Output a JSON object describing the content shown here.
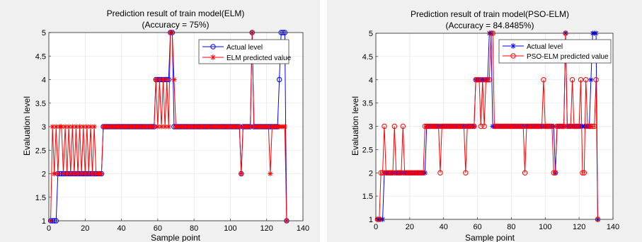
{
  "colors": {
    "panel_bg": "#f0f0f0",
    "axes_bg": "#ffffff",
    "axis": "#262626",
    "grid": "#dfdfdf",
    "blue": "#0000ff",
    "red": "#ff0000"
  },
  "chart_data": [
    {
      "type": "line",
      "title": "Prediction result of train model(ELM)",
      "subtitle": "(Accuracy = 75%)",
      "xlabel": "Sample point",
      "ylabel": "Evaluation level",
      "xlim": [
        0,
        140
      ],
      "ylim": [
        1,
        5
      ],
      "xticks": [
        0,
        20,
        40,
        60,
        80,
        100,
        120,
        140
      ],
      "yticks": [
        1,
        1.5,
        2,
        2.5,
        3,
        3.5,
        4,
        4.5,
        5
      ],
      "grid": true,
      "legend": "top-right",
      "series": [
        {
          "name": "Actual level",
          "color": "#0000ff",
          "marker": "circle",
          "values": [
            1,
            1,
            1,
            1,
            2,
            2,
            2,
            2,
            2,
            2,
            2,
            2,
            2,
            2,
            2,
            2,
            2,
            2,
            2,
            2,
            2,
            2,
            2,
            2,
            2,
            2,
            2,
            2,
            2,
            3,
            3,
            3,
            3,
            3,
            3,
            3,
            3,
            3,
            3,
            3,
            3,
            3,
            3,
            3,
            3,
            3,
            3,
            3,
            3,
            3,
            3,
            3,
            3,
            3,
            3,
            3,
            3,
            3,
            4,
            4,
            4,
            4,
            4,
            4,
            4,
            4,
            5,
            5,
            3,
            3,
            3,
            3,
            3,
            3,
            3,
            3,
            3,
            3,
            3,
            3,
            3,
            3,
            3,
            3,
            3,
            3,
            3,
            3,
            3,
            3,
            3,
            3,
            3,
            3,
            3,
            3,
            3,
            3,
            3,
            3,
            3,
            3,
            3,
            3,
            3,
            2,
            3,
            3,
            3,
            3,
            3,
            5,
            3,
            3,
            3,
            3,
            3,
            3,
            3,
            3,
            3,
            3,
            3,
            3,
            3,
            3,
            4,
            5,
            5,
            5,
            1
          ]
        },
        {
          "name": "ELM predicted value",
          "color": "#ff0000",
          "marker": "star",
          "values": [
            1,
            3,
            2,
            3,
            2,
            3,
            3,
            2,
            3,
            2,
            3,
            2,
            3,
            2,
            3,
            2,
            3,
            2,
            3,
            2,
            3,
            2,
            3,
            2,
            3,
            2,
            2,
            2,
            2,
            3,
            3,
            3,
            3,
            3,
            3,
            3,
            3,
            3,
            3,
            3,
            3,
            3,
            3,
            3,
            3,
            3,
            3,
            3,
            3,
            3,
            3,
            3,
            3,
            3,
            3,
            3,
            3,
            3,
            4,
            3,
            4,
            3,
            4,
            3,
            4,
            3,
            5,
            5,
            4,
            3,
            3,
            3,
            3,
            3,
            3,
            3,
            3,
            3,
            3,
            3,
            3,
            3,
            3,
            3,
            3,
            3,
            3,
            3,
            3,
            3,
            3,
            3,
            3,
            3,
            3,
            3,
            3,
            3,
            3,
            3,
            3,
            3,
            3,
            3,
            3,
            2,
            3,
            3,
            3,
            3,
            3,
            5,
            3,
            3,
            3,
            3,
            3,
            3,
            3,
            3,
            3,
            2,
            3,
            3,
            3,
            3,
            3,
            3,
            3,
            3,
            1
          ]
        }
      ]
    },
    {
      "type": "line",
      "title": "Prediction result of train model(PSO-ELM)",
      "subtitle": "(Accuracy = 84.8485%)",
      "xlabel": "Sample point",
      "ylabel": "Evaluation level",
      "xlim": [
        0,
        140
      ],
      "ylim": [
        1,
        5
      ],
      "xticks": [
        0,
        20,
        40,
        60,
        80,
        100,
        120,
        140
      ],
      "yticks": [
        1,
        1.5,
        2,
        2.5,
        3,
        3.5,
        4,
        4.5,
        5
      ],
      "grid": true,
      "legend": "top-right",
      "series": [
        {
          "name": "Actual level",
          "color": "#0000ff",
          "marker": "star",
          "values": [
            1,
            1,
            1,
            1,
            2,
            2,
            2,
            2,
            2,
            2,
            2,
            2,
            2,
            2,
            2,
            2,
            2,
            2,
            2,
            2,
            2,
            2,
            2,
            2,
            2,
            2,
            2,
            2,
            2,
            3,
            3,
            3,
            3,
            3,
            3,
            3,
            3,
            3,
            3,
            3,
            3,
            3,
            3,
            3,
            3,
            3,
            3,
            3,
            3,
            3,
            3,
            3,
            3,
            3,
            3,
            3,
            3,
            3,
            4,
            4,
            4,
            4,
            4,
            4,
            4,
            4,
            5,
            5,
            3,
            3,
            3,
            3,
            3,
            3,
            3,
            3,
            3,
            3,
            3,
            3,
            3,
            3,
            3,
            3,
            3,
            3,
            3,
            3,
            3,
            3,
            3,
            3,
            3,
            3,
            3,
            3,
            3,
            3,
            3,
            3,
            3,
            3,
            3,
            3,
            3,
            2,
            3,
            3,
            3,
            3,
            3,
            5,
            3,
            3,
            3,
            3,
            3,
            3,
            3,
            3,
            3,
            3,
            3,
            3,
            3,
            3,
            4,
            5,
            5,
            5,
            1
          ]
        },
        {
          "name": "PSO-ELM predicted value",
          "color": "#ff0000",
          "marker": "circle",
          "values": [
            1,
            1,
            2,
            2,
            3,
            2,
            2,
            2,
            2,
            2,
            3,
            2,
            2,
            2,
            2,
            3,
            2,
            2,
            2,
            2,
            2,
            2,
            2,
            2,
            2,
            2,
            2,
            2,
            3,
            3,
            3,
            3,
            3,
            3,
            3,
            3,
            3,
            2,
            3,
            3,
            3,
            3,
            3,
            3,
            3,
            3,
            3,
            3,
            3,
            3,
            3,
            3,
            2,
            3,
            3,
            3,
            3,
            3,
            4,
            4,
            4,
            3,
            4,
            3,
            4,
            4,
            4,
            5,
            5,
            3,
            3,
            3,
            3,
            3,
            3,
            3,
            3,
            3,
            3,
            3,
            3,
            3,
            3,
            3,
            3,
            3,
            3,
            2,
            3,
            3,
            3,
            3,
            3,
            3,
            3,
            3,
            3,
            3,
            4,
            3,
            3,
            3,
            3,
            3,
            2,
            2,
            3,
            3,
            3,
            3,
            3,
            5,
            3,
            3,
            3,
            4,
            3,
            3,
            3,
            3,
            4,
            2,
            2,
            4,
            3,
            3,
            3,
            3,
            3,
            4,
            1
          ]
        }
      ]
    }
  ]
}
